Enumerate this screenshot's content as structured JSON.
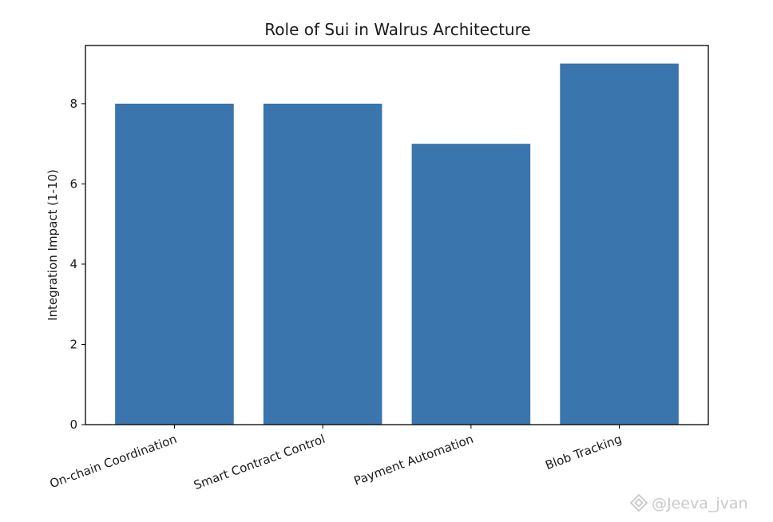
{
  "chart_data": {
    "type": "bar",
    "title": "Role of Sui in Walrus Architecture",
    "xlabel": "",
    "ylabel": "Integration Impact (1-10)",
    "categories": [
      "On-chain Coordination",
      "Smart Contract Control",
      "Payment Automation",
      "Blob Tracking"
    ],
    "values": [
      8,
      8,
      7,
      9
    ],
    "ylim": [
      0,
      9.45
    ],
    "yticks": [
      0,
      2,
      4,
      6,
      8
    ],
    "bar_color": "#3a75ae",
    "grid": false,
    "legend": "none"
  },
  "watermark": {
    "text": "@Jeeva_jvan",
    "icon": "binance-diamond-icon",
    "color": "#c9c9c9"
  }
}
